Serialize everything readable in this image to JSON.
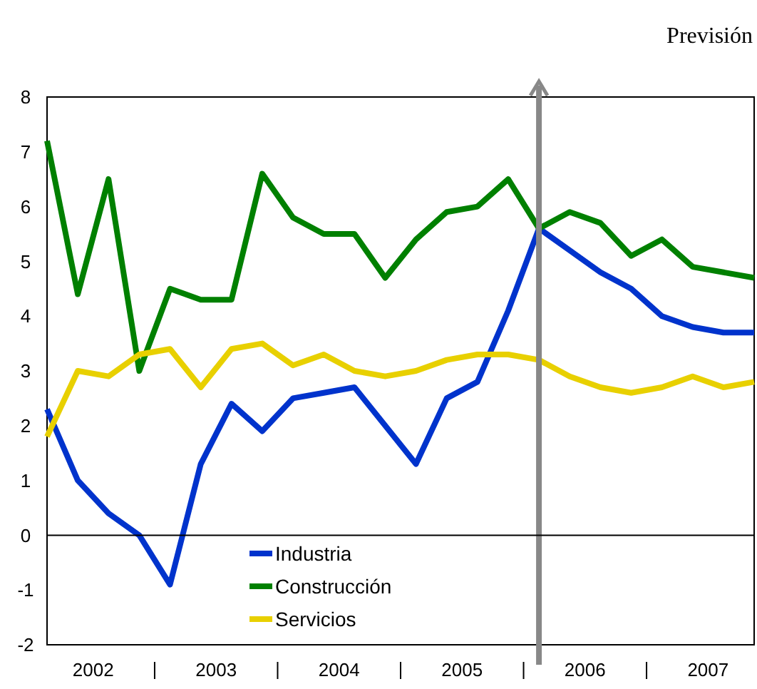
{
  "chart_data": {
    "type": "line",
    "x": [
      2002,
      2002.25,
      2002.5,
      2002.75,
      2003,
      2003.25,
      2003.5,
      2003.75,
      2004,
      2004.25,
      2004.5,
      2004.75,
      2005,
      2005.25,
      2005.5,
      2005.75,
      2006,
      2006.25,
      2006.5,
      2006.75,
      2007,
      2007.25,
      2007.5,
      2007.75
    ],
    "series": [
      {
        "name": "Industria",
        "color": "#0033cc",
        "values": [
          2.3,
          1.0,
          0.4,
          0.0,
          -0.9,
          1.3,
          2.4,
          1.9,
          2.5,
          2.6,
          2.7,
          2.0,
          1.3,
          2.5,
          2.8,
          4.1,
          5.6,
          5.2,
          4.8,
          4.5,
          4.0,
          3.8,
          3.7,
          3.7
        ]
      },
      {
        "name": "Construcción",
        "color": "#008000",
        "values": [
          7.2,
          4.4,
          6.5,
          3.0,
          4.5,
          4.3,
          4.3,
          6.6,
          5.8,
          5.5,
          5.5,
          4.7,
          5.4,
          5.9,
          6.0,
          6.5,
          5.6,
          5.9,
          5.7,
          5.1,
          5.4,
          4.9,
          4.8,
          4.7
        ]
      },
      {
        "name": "Servicios",
        "color": "#e8d000",
        "values": [
          1.8,
          3.0,
          2.9,
          3.3,
          3.4,
          2.7,
          3.4,
          3.5,
          3.1,
          3.3,
          3.0,
          2.9,
          3.0,
          3.2,
          3.3,
          3.3,
          3.2,
          2.9,
          2.7,
          2.6,
          2.7,
          2.9,
          2.7,
          2.8
        ]
      }
    ],
    "xlim": [
      2002,
      2007.75
    ],
    "xticks": [
      {
        "value": 2002.375,
        "label": "2002"
      },
      {
        "value": 2002.875,
        "label": null
      },
      {
        "value": 2003.375,
        "label": "2003"
      },
      {
        "value": 2003.875,
        "label": null
      },
      {
        "value": 2004.375,
        "label": "2004"
      },
      {
        "value": 2004.875,
        "label": null
      },
      {
        "value": 2005.375,
        "label": "2005"
      },
      {
        "value": 2005.875,
        "label": null
      },
      {
        "value": 2006.375,
        "label": "2006"
      },
      {
        "value": 2006.875,
        "label": null
      },
      {
        "value": 2007.375,
        "label": "2007"
      }
    ],
    "ylim": [
      -2,
      8
    ],
    "yticks": [
      -2,
      -1,
      0,
      1,
      2,
      3,
      4,
      5,
      6,
      7,
      8
    ],
    "ref_lines": [
      {
        "axis": "x",
        "value": 2006,
        "color": "#888888"
      },
      {
        "axis": "y",
        "value": 0,
        "color": "#000000"
      }
    ],
    "annotations": [
      "Previsión"
    ],
    "legend": "bottom",
    "marker": "none",
    "line_style": "solid"
  }
}
